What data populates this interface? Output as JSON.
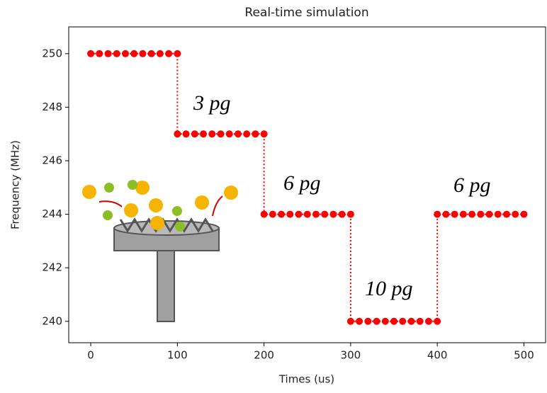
{
  "chart_data": {
    "type": "line",
    "title": "Real-time simulation",
    "xlabel": "Times (us)",
    "ylabel": "Frequency (MHz)",
    "x": [
      0,
      10,
      20,
      30,
      40,
      50,
      60,
      70,
      80,
      90,
      100,
      100,
      110,
      120,
      130,
      140,
      150,
      160,
      170,
      180,
      190,
      200,
      200,
      210,
      220,
      230,
      240,
      250,
      260,
      270,
      280,
      290,
      300,
      300,
      310,
      320,
      330,
      340,
      350,
      360,
      370,
      380,
      390,
      400,
      400,
      410,
      420,
      430,
      440,
      450,
      460,
      470,
      480,
      490,
      500
    ],
    "series": [
      {
        "color": "#ff0000",
        "values": [
          250,
          250,
          250,
          250,
          250,
          250,
          250,
          250,
          250,
          250,
          250,
          247,
          247,
          247,
          247,
          247,
          247,
          247,
          247,
          247,
          247,
          247,
          244,
          244,
          244,
          244,
          244,
          244,
          244,
          244,
          244,
          244,
          244,
          240,
          240,
          240,
          240,
          240,
          240,
          240,
          240,
          240,
          240,
          240,
          244,
          244,
          244,
          244,
          244,
          244,
          244,
          244,
          244,
          244,
          244
        ]
      }
    ],
    "xlim": [
      -25.4,
      525
    ],
    "ylim": [
      239.2,
      251
    ],
    "xticks": [
      0,
      100,
      200,
      300,
      400,
      500
    ],
    "yticks": [
      240,
      242,
      244,
      246,
      248,
      250
    ],
    "annotations": [
      "3 pg",
      "6 pg",
      "10 pg",
      "6 pg"
    ]
  }
}
